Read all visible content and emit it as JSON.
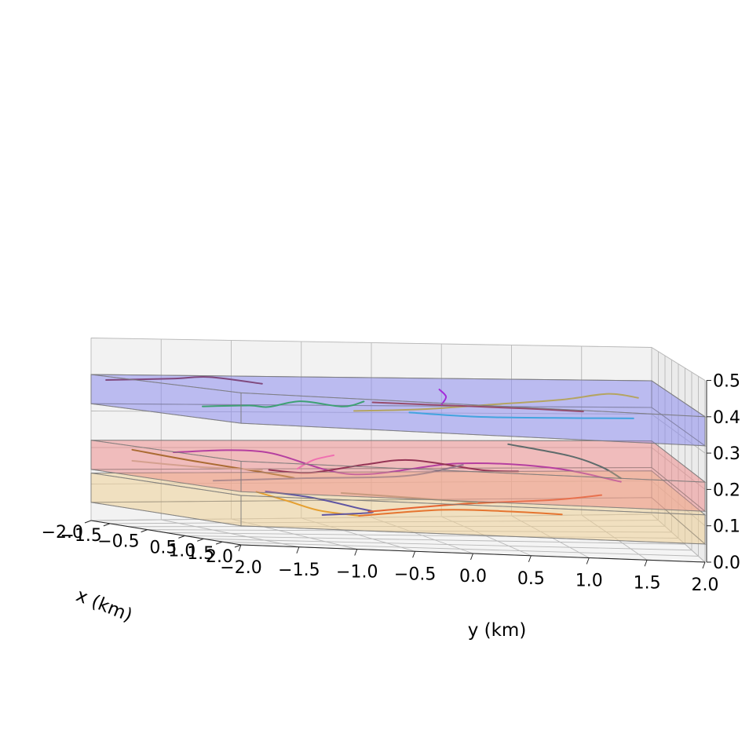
{
  "chart_data": {
    "type": "line",
    "projection": "3d",
    "title": "",
    "xlabel": "x (km)",
    "ylabel": "y (km)",
    "zlabel": "",
    "xlim": [
      -2.0,
      2.0
    ],
    "ylim": [
      -2.0,
      2.0
    ],
    "zlim": [
      0.0,
      0.5
    ],
    "x_ticks": [
      "−2.0",
      "−1.5",
      "−0.5",
      "0.5",
      "1.0",
      "1.5",
      "2.0"
    ],
    "y_ticks": [
      "−2.0",
      "−1.5",
      "−1.0",
      "−0.5",
      "0.0",
      "0.5",
      "1.0",
      "1.5",
      "2.0"
    ],
    "z_ticks": [
      "0.0",
      "0.1",
      "0.2",
      "0.3",
      "0.4",
      "0.5"
    ],
    "grid": true,
    "legend": "none",
    "layers": [
      {
        "color": "#f0d096",
        "x": [
          -2.0,
          2.0
        ],
        "y": [
          -2.0,
          2.0
        ],
        "z": [
          0.05,
          0.13
        ]
      },
      {
        "color": "#f09090",
        "x": [
          -2.0,
          2.0
        ],
        "y": [
          -2.0,
          2.0
        ],
        "z": [
          0.14,
          0.22
        ]
      },
      {
        "color": "#8c8cf0",
        "x": [
          -2.0,
          2.0
        ],
        "y": [
          -2.0,
          2.0
        ],
        "z": [
          0.32,
          0.4
        ]
      }
    ],
    "series": [
      {
        "color": "#7a2a48",
        "x": [
          -1.6,
          -1.3,
          -1.0,
          -0.6
        ],
        "y": [
          -2.0,
          -1.6,
          -1.4,
          -1.1
        ],
        "z": [
          0.39,
          0.4,
          0.41,
          0.4
        ]
      },
      {
        "color": "#1aaa3a",
        "x": [
          0.3,
          0.2,
          0.0,
          -0.2,
          -0.1,
          0.2
        ],
        "y": [
          -1.8,
          -1.4,
          -1.2,
          -0.9,
          -0.6,
          -0.5
        ],
        "z": [
          0.345,
          0.35,
          0.345,
          0.36,
          0.35,
          0.37
        ]
      },
      {
        "color": "#c8b020",
        "x": [
          0.3,
          0.0,
          -0.4,
          -0.8,
          -1.2,
          -1.0
        ],
        "y": [
          -0.6,
          0.0,
          0.6,
          1.2,
          1.6,
          1.8
        ],
        "z": [
          0.345,
          0.35,
          0.36,
          0.37,
          0.38,
          0.375
        ]
      },
      {
        "color": "#9b2f2f",
        "x": [
          -0.9,
          -0.4,
          0.0,
          0.4
        ],
        "y": [
          -0.2,
          0.3,
          0.8,
          1.2
        ],
        "z": [
          0.35,
          0.355,
          0.36,
          0.365
        ]
      },
      {
        "color": "#20b0d8",
        "x": [
          0.0,
          0.1,
          0.2,
          0.4
        ],
        "y": [
          -0.1,
          0.4,
          1.0,
          1.6
        ],
        "z": [
          0.34,
          0.335,
          0.34,
          0.35
        ]
      },
      {
        "color": "#b000d0",
        "x": [
          -0.9,
          -0.9,
          -0.8
        ],
        "y": [
          0.3,
          0.35,
          0.3
        ],
        "z": [
          0.39,
          0.37,
          0.35
        ]
      },
      {
        "color": "#9a1aa8",
        "x": [
          -0.5,
          -0.2,
          0.2,
          0.4,
          0.6,
          0.4
        ],
        "y": [
          -1.8,
          -1.2,
          -0.6,
          0.2,
          0.9,
          1.5
        ],
        "z": [
          0.21,
          0.22,
          0.17,
          0.21,
          0.21,
          0.17
        ]
      },
      {
        "color": "#f060c0",
        "x": [
          0.1,
          -0.2,
          -0.4
        ],
        "y": [
          -1.0,
          -0.8,
          -0.6
        ],
        "z": [
          0.18,
          0.2,
          0.21
        ]
      },
      {
        "color": "#6a0a3a",
        "x": [
          0.4,
          0.1,
          -0.2,
          -0.4,
          -0.2,
          0.3
        ],
        "y": [
          -1.3,
          -0.9,
          -0.4,
          0.0,
          0.5,
          0.7
        ],
        "z": [
          0.18,
          0.17,
          0.19,
          0.2,
          0.18,
          0.19
        ]
      },
      {
        "color": "#8a5a08",
        "x": [
          -0.9,
          -0.5,
          0.0,
          0.4
        ],
        "y": [
          -2.0,
          -1.7,
          -1.3,
          -1.1
        ],
        "z": [
          0.21,
          0.19,
          0.17,
          0.16
        ]
      },
      {
        "color": "#6a6a8a",
        "x": [
          0.6,
          0.4,
          0.3,
          0.1
        ],
        "y": [
          -1.8,
          -1.0,
          -0.2,
          0.3
        ],
        "z": [
          0.15,
          0.16,
          0.17,
          0.2
        ]
      },
      {
        "color": "#1a5a5a",
        "x": [
          -0.8,
          -0.4,
          0.0,
          0.4
        ],
        "y": [
          0.8,
          1.2,
          1.4,
          1.5
        ],
        "z": [
          0.24,
          0.22,
          0.2,
          0.18
        ]
      },
      {
        "color": "#c8a890",
        "x": [
          -0.9,
          -0.6,
          -0.2
        ],
        "y": [
          -2.0,
          -1.6,
          -1.2
        ],
        "z": [
          0.18,
          0.17,
          0.17
        ]
      },
      {
        "color": "#e08800",
        "x": [
          0.4,
          0.6,
          0.8,
          0.9
        ],
        "y": [
          -1.4,
          -1.2,
          -1.0,
          -0.7
        ],
        "z": [
          0.12,
          0.1,
          0.08,
          0.07
        ]
      },
      {
        "color": "#1a1aa8",
        "x": [
          0.3,
          0.5,
          0.8,
          0.9,
          0.9
        ],
        "y": [
          -1.3,
          -1.0,
          -0.7,
          -0.6,
          -1.0
        ],
        "z": [
          0.12,
          0.11,
          0.09,
          0.08,
          0.07
        ]
      },
      {
        "color": "#e03000",
        "x": [
          0.8,
          0.5,
          0.2,
          0.0
        ],
        "y": [
          -0.6,
          0.2,
          1.0,
          1.4
        ],
        "z": [
          0.08,
          0.1,
          0.11,
          0.12
        ]
      },
      {
        "color": "#e04a00",
        "x": [
          0.9,
          0.8,
          0.6,
          0.6
        ],
        "y": [
          -0.7,
          0.0,
          0.6,
          1.0
        ],
        "z": [
          0.07,
          0.09,
          0.085,
          0.08
        ]
      },
      {
        "color": "#9a8a6a",
        "x": [
          0.3,
          0.5,
          0.7
        ],
        "y": [
          -0.7,
          -0.2,
          0.3
        ],
        "z": [
          0.12,
          0.115,
          0.11
        ]
      }
    ]
  }
}
